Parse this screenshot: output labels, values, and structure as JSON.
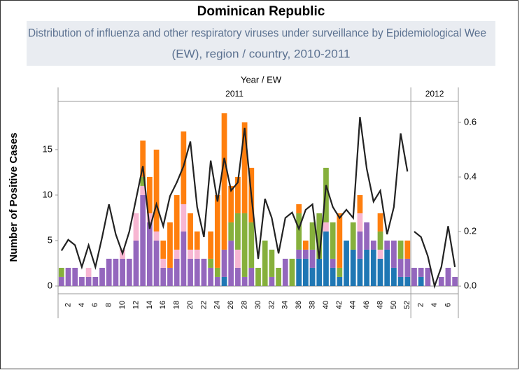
{
  "chart_data": {
    "type": "bar",
    "title": "Dominican Republic",
    "subtitle": [
      "Distribution of influenza and other respiratory viruses under surveillance by Epidemiological Wee",
      "(EW), region / country, 2010-2011"
    ],
    "x_title": "Year  /  EW",
    "y_title": "Number of Positive Cases",
    "stacked": true,
    "ylim": [
      -0.85,
      20.3
    ],
    "yticks": [
      0,
      5,
      10,
      15
    ],
    "y2lim": [
      -0.028,
      0.677
    ],
    "y2ticks": [
      {
        "value": 0,
        "label": "0.0"
      },
      0.2,
      0.4,
      0.6
    ],
    "panels": [
      {
        "label": "2011",
        "categories": [
          null,
          "2",
          null,
          "4",
          null,
          "6",
          null,
          "8",
          null,
          "10",
          null,
          "12",
          null,
          "14",
          null,
          "16",
          null,
          "18",
          null,
          "20",
          null,
          "22",
          null,
          "24",
          null,
          "26",
          null,
          "28",
          null,
          "30",
          null,
          "32",
          null,
          "34",
          null,
          "36",
          null,
          "38",
          null,
          "40",
          null,
          "42",
          null,
          "44",
          null,
          "46",
          null,
          "48",
          null,
          "50",
          null,
          "52"
        ]
      },
      {
        "label": "2012",
        "categories": [
          null,
          "2",
          null,
          "4",
          null,
          "6",
          null
        ]
      }
    ],
    "series": [
      {
        "color": "#1f77b4",
        "values": [
          0,
          0,
          0,
          0,
          0,
          0,
          0,
          0,
          0,
          0,
          0,
          0,
          0,
          0,
          0,
          0,
          0,
          0,
          0,
          0,
          0,
          0,
          0,
          0,
          1,
          0,
          0,
          0,
          0,
          0,
          0,
          0,
          0,
          0,
          0,
          3,
          3,
          2,
          3,
          6,
          2,
          1,
          5,
          4,
          3,
          4,
          4,
          3,
          4,
          2,
          1,
          1,
          0,
          1,
          0,
          0,
          0,
          0,
          0
        ]
      },
      {
        "color": "#9467bd",
        "values": [
          1,
          2,
          2,
          1,
          1,
          1,
          2,
          3,
          3,
          3,
          3,
          5,
          10,
          7,
          5,
          2,
          2,
          3,
          6,
          3,
          3,
          3,
          2,
          1,
          3,
          5,
          2,
          1,
          2,
          0,
          0,
          1,
          0,
          3,
          0,
          1,
          1,
          2,
          0,
          0,
          1,
          0,
          0,
          0,
          3,
          3,
          1,
          0,
          1,
          3,
          2,
          2,
          2,
          1,
          2,
          0,
          1,
          2,
          1
        ]
      },
      {
        "color": "#f7b6d2",
        "values": [
          0,
          0,
          0,
          0,
          1,
          0,
          0,
          0,
          0,
          1,
          0,
          3,
          1,
          1,
          1,
          1,
          0,
          1,
          3,
          1,
          1,
          0,
          0,
          0,
          0,
          0,
          2,
          0,
          0,
          0,
          0,
          0,
          0,
          0,
          0,
          0,
          0,
          0,
          0,
          1,
          0,
          0,
          0,
          0,
          2,
          0,
          0,
          1,
          0,
          0,
          0,
          0,
          0,
          0,
          0,
          0,
          0,
          0,
          0
        ]
      },
      {
        "color": "#86b03c",
        "values": [
          1,
          0,
          0,
          0,
          0,
          0,
          0,
          0,
          0,
          0,
          0,
          0,
          1,
          0,
          0,
          0,
          0,
          0,
          0,
          0,
          0,
          0,
          1,
          1,
          0,
          2,
          4,
          7,
          5,
          2,
          5,
          3,
          2,
          0,
          3,
          4,
          0,
          3,
          5,
          6,
          4,
          1,
          0,
          3,
          0,
          0,
          0,
          2,
          0,
          0,
          2,
          0,
          0,
          0,
          0,
          0,
          0,
          0,
          0
        ]
      },
      {
        "color": "#ff7f0e",
        "values": [
          0,
          0,
          0,
          0,
          0,
          0,
          0,
          0,
          0,
          0,
          0,
          0,
          4,
          4,
          9,
          2,
          5,
          6,
          8,
          4,
          2,
          0,
          3,
          8,
          15,
          4,
          4,
          10,
          6,
          0,
          0,
          0,
          0,
          0,
          0,
          1,
          1,
          0,
          0,
          0,
          0,
          6,
          0,
          0,
          2,
          0,
          0,
          2,
          0,
          0,
          0,
          2,
          0,
          0,
          0,
          0,
          0,
          0,
          0
        ]
      },
      {
        "type": "line",
        "axis": "y2",
        "color": "#222222",
        "values": [
          0.13,
          0.17,
          0.15,
          0.07,
          0.15,
          0.07,
          0.18,
          0.3,
          0.19,
          0.12,
          0.2,
          0.32,
          0.44,
          0.21,
          0.3,
          0.22,
          0.33,
          0.38,
          0.44,
          0.53,
          0.29,
          0.18,
          0.46,
          0.31,
          0.47,
          0.35,
          0.38,
          0.58,
          0.33,
          0.1,
          0.32,
          0.25,
          0.12,
          0.25,
          0.27,
          0.21,
          0.28,
          0.3,
          0.1,
          0.37,
          0.29,
          0.25,
          0.28,
          0.25,
          0.62,
          0.43,
          0.31,
          0.35,
          0.19,
          0.29,
          0.56,
          0.42,
          0.2,
          0.18,
          0.11,
          0,
          0.07,
          0.22,
          0.07
        ]
      }
    ]
  }
}
